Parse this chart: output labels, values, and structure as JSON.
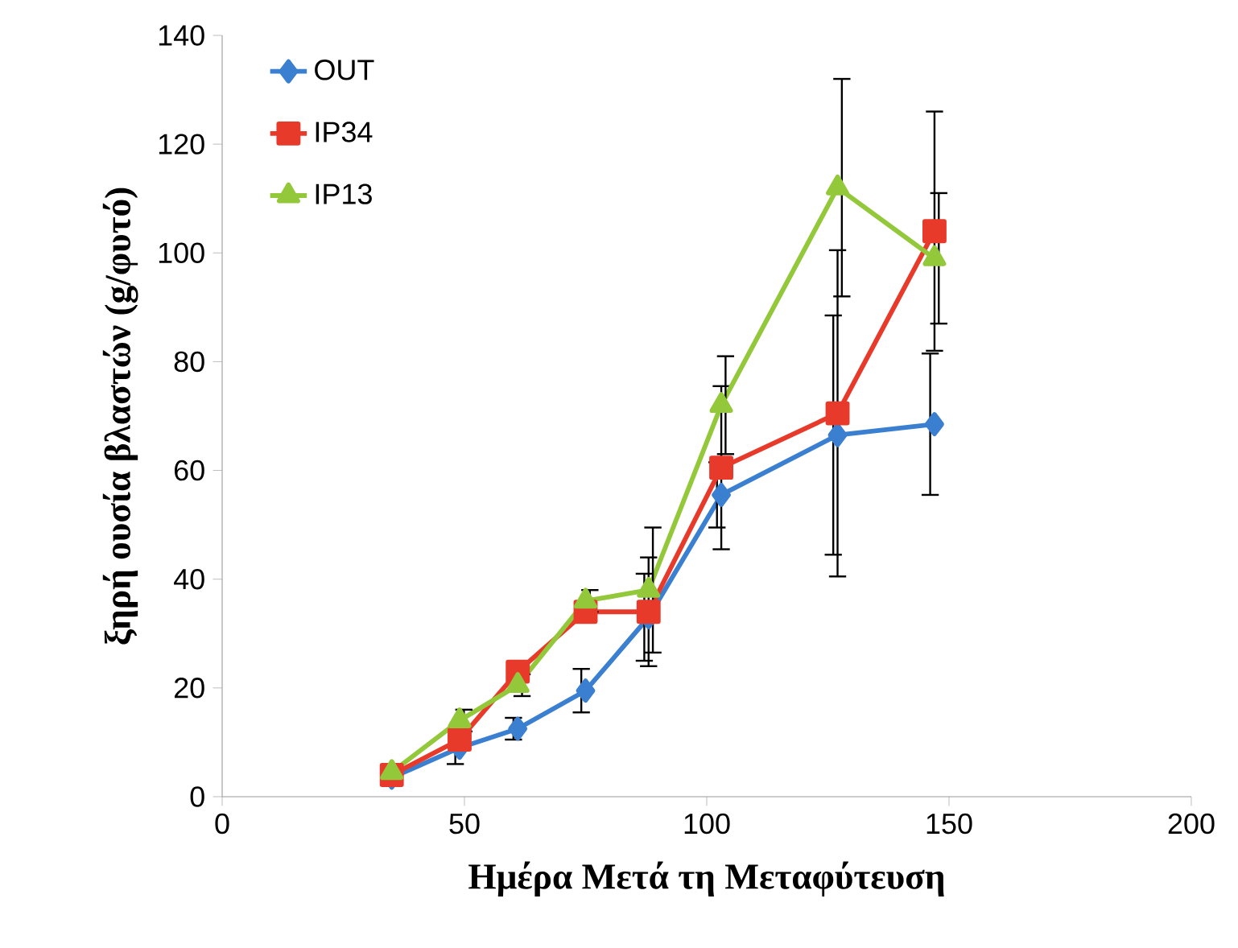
{
  "chart_data": {
    "type": "line",
    "xlabel": "Ημέρα Μετά τη Μεταφύτευση",
    "ylabel": "ξηρή ουσία βλαστών (g/φυτό)",
    "x": [
      35,
      49,
      61,
      75,
      88,
      103,
      127,
      147
    ],
    "series": [
      {
        "name": "OUT",
        "color": "#3a7fd0",
        "marker": "diamond",
        "values": [
          3.5,
          9,
          12.5,
          19.5,
          33,
          55.5,
          66.5,
          68.5
        ],
        "errors": [
          null,
          3,
          2,
          4,
          8,
          6,
          22,
          13
        ]
      },
      {
        "name": "IP34",
        "color": "#e83a2a",
        "marker": "square",
        "values": [
          4,
          10.5,
          23,
          34,
          34,
          60.5,
          70.5,
          104
        ],
        "errors": [
          null,
          null,
          null,
          null,
          10,
          15,
          30,
          22
        ]
      },
      {
        "name": "IP13",
        "color": "#93c83a",
        "marker": "triangle",
        "values": [
          4.5,
          14,
          20.5,
          36,
          38,
          72,
          112,
          99
        ],
        "errors": [
          null,
          2,
          2,
          2,
          11.5,
          9,
          20,
          12
        ]
      }
    ],
    "xlim": [
      0,
      200
    ],
    "ylim": [
      0,
      140
    ],
    "xticks": [
      0,
      50,
      100,
      150,
      200
    ],
    "yticks": [
      0,
      20,
      40,
      60,
      80,
      100,
      120,
      140
    ],
    "legend": "top left",
    "grid": false
  }
}
